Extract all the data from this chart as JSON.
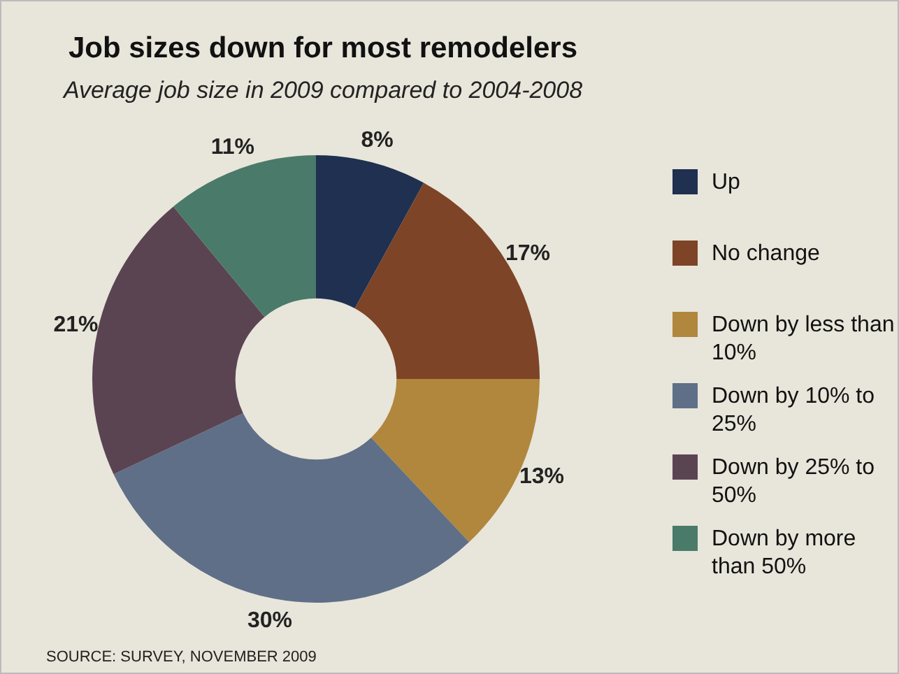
{
  "chart_data": {
    "type": "donut",
    "title": "Job sizes down for most remodelers",
    "subtitle": "Average job size in 2009 compared to 2004-2008",
    "categories": [
      "Up",
      "No change",
      "Down by less than 10%",
      "Down by 10% to 25%",
      "Down by 25% to 50%",
      "Down by more than 50%"
    ],
    "values": [
      8,
      17,
      13,
      30,
      21,
      11
    ],
    "colors": [
      "#1f3050",
      "#7d4427",
      "#b0873c",
      "#5f6f88",
      "#5a4452",
      "#4a7a6a"
    ],
    "value_labels": [
      "8%",
      "17%",
      "13%",
      "30%",
      "21%",
      "11%"
    ],
    "legend": "right",
    "annotations": [
      "SOURCE: SURVEY, NOVEMBER 2009"
    ]
  }
}
